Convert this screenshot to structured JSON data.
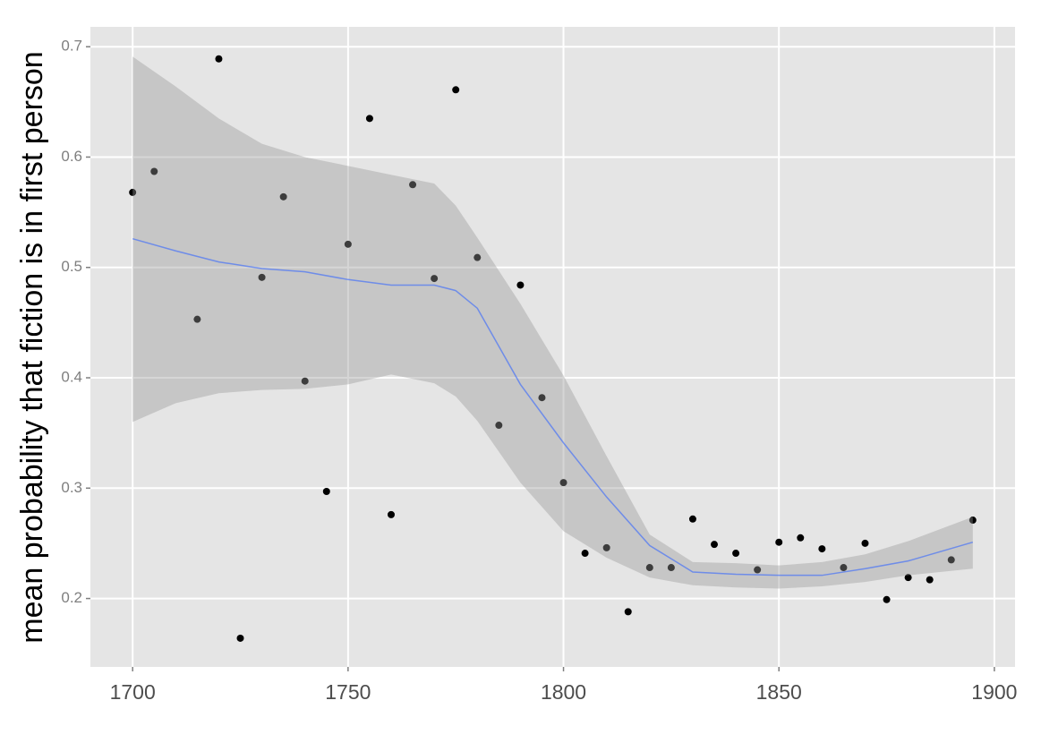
{
  "chart_data": {
    "type": "scatter",
    "ylabel": "mean probability that fiction is in first person",
    "x": [
      1700,
      1705,
      1715,
      1720,
      1725,
      1730,
      1735,
      1740,
      1745,
      1750,
      1755,
      1760,
      1765,
      1770,
      1775,
      1780,
      1785,
      1790,
      1795,
      1800,
      1805,
      1810,
      1815,
      1820,
      1825,
      1830,
      1835,
      1840,
      1845,
      1850,
      1855,
      1860,
      1865,
      1870,
      1875,
      1880,
      1885,
      1890,
      1895
    ],
    "values": [
      0.568,
      0.587,
      0.453,
      0.689,
      0.164,
      0.491,
      0.564,
      0.397,
      0.297,
      0.521,
      0.635,
      0.276,
      0.575,
      0.49,
      0.661,
      0.509,
      0.357,
      0.484,
      0.382,
      0.305,
      0.241,
      0.246,
      0.188,
      0.228,
      0.228,
      0.272,
      0.249,
      0.241,
      0.226,
      0.251,
      0.255,
      0.245,
      0.228,
      0.25,
      0.199,
      0.219,
      0.217,
      0.235,
      0.271
    ],
    "color": "#000000",
    "smooth": {
      "x": [
        1700,
        1710,
        1720,
        1730,
        1740,
        1750,
        1760,
        1770,
        1775,
        1780,
        1790,
        1800,
        1810,
        1820,
        1830,
        1840,
        1850,
        1860,
        1870,
        1880,
        1895
      ],
      "values": [
        0.526,
        0.515,
        0.505,
        0.499,
        0.496,
        0.489,
        0.484,
        0.484,
        0.479,
        0.463,
        0.394,
        0.341,
        0.292,
        0.248,
        0.224,
        0.222,
        0.221,
        0.221,
        0.227,
        0.234,
        0.251
      ],
      "lower": [
        0.36,
        0.377,
        0.386,
        0.389,
        0.39,
        0.394,
        0.403,
        0.395,
        0.383,
        0.361,
        0.305,
        0.261,
        0.237,
        0.219,
        0.212,
        0.21,
        0.209,
        0.211,
        0.215,
        0.221,
        0.227
      ],
      "upper": [
        0.691,
        0.664,
        0.635,
        0.612,
        0.6,
        0.592,
        0.584,
        0.576,
        0.556,
        0.527,
        0.467,
        0.402,
        0.329,
        0.258,
        0.233,
        0.232,
        0.23,
        0.233,
        0.24,
        0.252,
        0.274
      ],
      "color": "#3366ff",
      "band_color": "#999999"
    },
    "xlim": [
      1690.2,
      1904.8
    ],
    "ylim": [
      0.138,
      0.718
    ],
    "xticks": [
      1700,
      1750,
      1800,
      1850,
      1900
    ],
    "yticks": [
      0.2,
      0.3,
      0.4,
      0.5,
      0.6,
      0.7
    ],
    "grid": true
  }
}
